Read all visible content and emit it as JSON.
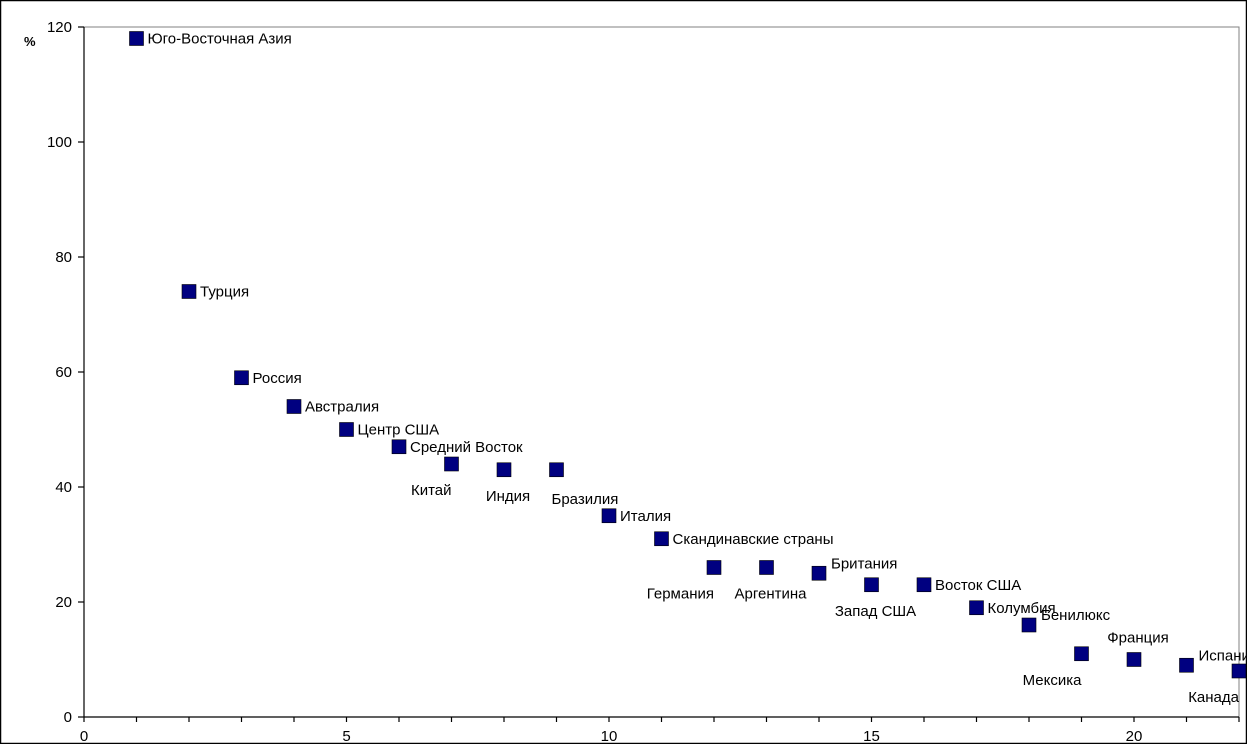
{
  "chart_data": {
    "type": "scatter",
    "title": "",
    "xlabel": "",
    "ylabel": "%",
    "xlim": [
      0,
      22
    ],
    "ylim": [
      0,
      120
    ],
    "x_ticks": [
      0,
      5,
      10,
      15,
      20
    ],
    "y_ticks": [
      0,
      20,
      40,
      60,
      80,
      100,
      120
    ],
    "grid": false,
    "marker_color": "#000080",
    "points": [
      {
        "x": 1,
        "y": 118,
        "label": "Юго-Восточная Азия",
        "label_pos": "right"
      },
      {
        "x": 2,
        "y": 74,
        "label": "Турция",
        "label_pos": "right"
      },
      {
        "x": 3,
        "y": 59,
        "label": "Россия",
        "label_pos": "right"
      },
      {
        "x": 4,
        "y": 54,
        "label": "Австралия",
        "label_pos": "right"
      },
      {
        "x": 5,
        "y": 50,
        "label": "Центр США",
        "label_pos": "right"
      },
      {
        "x": 6,
        "y": 47,
        "label": "Средний Восток",
        "label_pos": "right"
      },
      {
        "x": 7,
        "y": 44,
        "label": "Китай",
        "label_pos": "below-left"
      },
      {
        "x": 8,
        "y": 43,
        "label": "Индия",
        "label_pos": "below"
      },
      {
        "x": 9,
        "y": 43,
        "label": "Бразилия",
        "label_pos": "below-right"
      },
      {
        "x": 10,
        "y": 35,
        "label": "Италия",
        "label_pos": "right"
      },
      {
        "x": 11,
        "y": 31,
        "label": "Скандинавские страны",
        "label_pos": "right"
      },
      {
        "x": 12,
        "y": 26,
        "label": "Германия",
        "label_pos": "below-left"
      },
      {
        "x": 13,
        "y": 26,
        "label": "Аргентина",
        "label_pos": "below"
      },
      {
        "x": 14,
        "y": 25,
        "label": "Британия",
        "label_pos": "upper-right"
      },
      {
        "x": 15,
        "y": 23,
        "label": "Запад США",
        "label_pos": "below"
      },
      {
        "x": 16,
        "y": 23,
        "label": "Восток США",
        "label_pos": "right"
      },
      {
        "x": 17,
        "y": 19,
        "label": "Колумбия",
        "label_pos": "right"
      },
      {
        "x": 18,
        "y": 16,
        "label": "Бенилюкс",
        "label_pos": "upper-right"
      },
      {
        "x": 19,
        "y": 11,
        "label": "Мексика",
        "label_pos": "below-left"
      },
      {
        "x": 20,
        "y": 10,
        "label": "Франция",
        "label_pos": "above"
      },
      {
        "x": 21,
        "y": 9,
        "label": "Испания",
        "label_pos": "upper-right"
      },
      {
        "x": 22,
        "y": 8,
        "label": "Канада",
        "label_pos": "below-left"
      }
    ]
  }
}
